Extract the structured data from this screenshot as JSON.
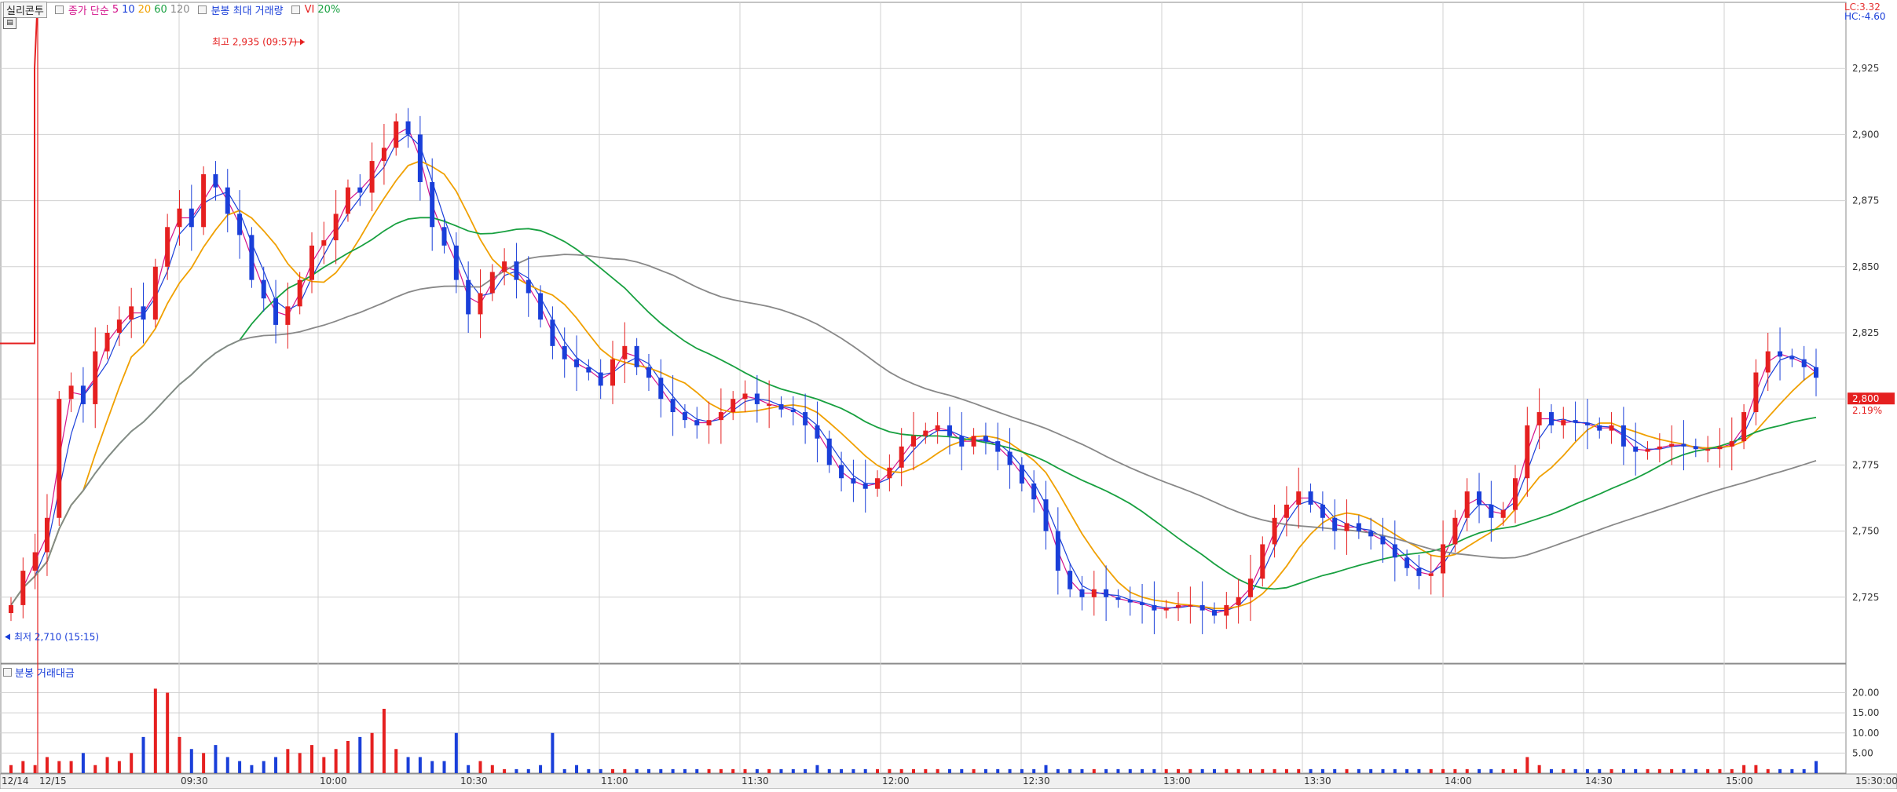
{
  "legend": {
    "symbol": "실리콘투",
    "ma_label": "종가 단순",
    "ma_periods": [
      "5",
      "10",
      "20",
      "60",
      "120"
    ],
    "ma_colors": [
      "#d4148c",
      "#1a3fd9",
      "#f0a000",
      "#18a040",
      "#888888"
    ],
    "vol_ma_label": "분봉 최대 거래량",
    "vi_label": "VI",
    "vi_value": "20%"
  },
  "volume_legend": "분봉 거래대금",
  "right_box": {
    "lc": "LC:3.32",
    "hc": "HC:-4.60",
    "current_price": "2,800",
    "change": "2.19%"
  },
  "annotations": {
    "high": "최고 2,935 (09:57)",
    "low": "최저 2,710 (15:15)"
  },
  "price_axis": [
    "2,925",
    "2,900",
    "2,875",
    "2,850",
    "2,825",
    "2,800",
    "2,775",
    "2,750",
    "2,725"
  ],
  "volume_axis": [
    "20.00",
    "15.00",
    "10.00",
    "5.00"
  ],
  "time_axis": [
    "12/14",
    "12/15",
    "09:30",
    "10:00",
    "10:30",
    "11:00",
    "11:30",
    "12:00",
    "12:30",
    "13:00",
    "13:30",
    "14:00",
    "14:30",
    "15:00",
    "15:30:00"
  ],
  "colors": {
    "up": "#e52020",
    "down": "#1a3fd9",
    "grid": "#d0d0d0"
  },
  "chart_data": {
    "type": "candlestick",
    "price_range": [
      2700,
      2950
    ],
    "volume_range": [
      0,
      24
    ],
    "price_path": [
      2722,
      2735,
      2742,
      2755,
      2800,
      2805,
      2798,
      2818,
      2825,
      2830,
      2835,
      2830,
      2850,
      2865,
      2872,
      2865,
      2885,
      2880,
      2870,
      2862,
      2845,
      2838,
      2828,
      2835,
      2845,
      2858,
      2860,
      2870,
      2880,
      2878,
      2890,
      2895,
      2905,
      2900,
      2882,
      2865,
      2858,
      2845,
      2832,
      2840,
      2848,
      2852,
      2845,
      2840,
      2830,
      2820,
      2815,
      2812,
      2810,
      2805,
      2815,
      2820,
      2812,
      2808,
      2800,
      2795,
      2792,
      2790,
      2792,
      2795,
      2800,
      2802,
      2798,
      2798,
      2796,
      2795,
      2790,
      2785,
      2775,
      2770,
      2768,
      2766,
      2770,
      2774,
      2782,
      2786,
      2788,
      2790,
      2786,
      2782,
      2786,
      2784,
      2780,
      2775,
      2768,
      2762,
      2750,
      2735,
      2728,
      2725,
      2728,
      2725,
      2724,
      2723,
      2722,
      2720,
      2721,
      2722,
      2722,
      2720,
      2718,
      2722,
      2725,
      2732,
      2745,
      2755,
      2760,
      2765,
      2760,
      2755,
      2750,
      2753,
      2750,
      2748,
      2745,
      2740,
      2736,
      2733,
      2734,
      2745,
      2755,
      2765,
      2760,
      2755,
      2758,
      2770,
      2790,
      2795,
      2790,
      2792,
      2791,
      2790,
      2788,
      2790,
      2782,
      2780,
      2781,
      2782,
      2783,
      2782,
      2781,
      2781,
      2782,
      2784,
      2795,
      2810,
      2818,
      2816,
      2815,
      2812,
      2808
    ],
    "volume": [
      2,
      3,
      2,
      4,
      3,
      3,
      5,
      2,
      4,
      3,
      5,
      9,
      21,
      20,
      9,
      6,
      5,
      7,
      4,
      3,
      2,
      3,
      4,
      6,
      5,
      7,
      4,
      6,
      8,
      9,
      10,
      16,
      6,
      4,
      4,
      3,
      3,
      10,
      2,
      3,
      2,
      1,
      1,
      1,
      2,
      10,
      1,
      2,
      1,
      1,
      1,
      1,
      1,
      1,
      1,
      1,
      1,
      1,
      1,
      1,
      1,
      1,
      1,
      1,
      1,
      1,
      1,
      2,
      1,
      1,
      1,
      1,
      1,
      1,
      1,
      1,
      1,
      1,
      1,
      1,
      1,
      1,
      1,
      1,
      1,
      1,
      2,
      1,
      1,
      1,
      1,
      1,
      1,
      1,
      1,
      1,
      1,
      1,
      1,
      1,
      1,
      1,
      1,
      1,
      1,
      1,
      1,
      1,
      1,
      1,
      1,
      1,
      1,
      1,
      1,
      1,
      1,
      1,
      1,
      1,
      1,
      1,
      1,
      1,
      1,
      1,
      4,
      2,
      1,
      1,
      1,
      1,
      1,
      1,
      1,
      1,
      1,
      1,
      1,
      1,
      1,
      1,
      1,
      1,
      2,
      2,
      1,
      1,
      1,
      1,
      3
    ],
    "high_marker": {
      "time": "09:57",
      "price": 2935
    },
    "low_marker": {
      "time": "15:15",
      "price": 2710
    }
  }
}
